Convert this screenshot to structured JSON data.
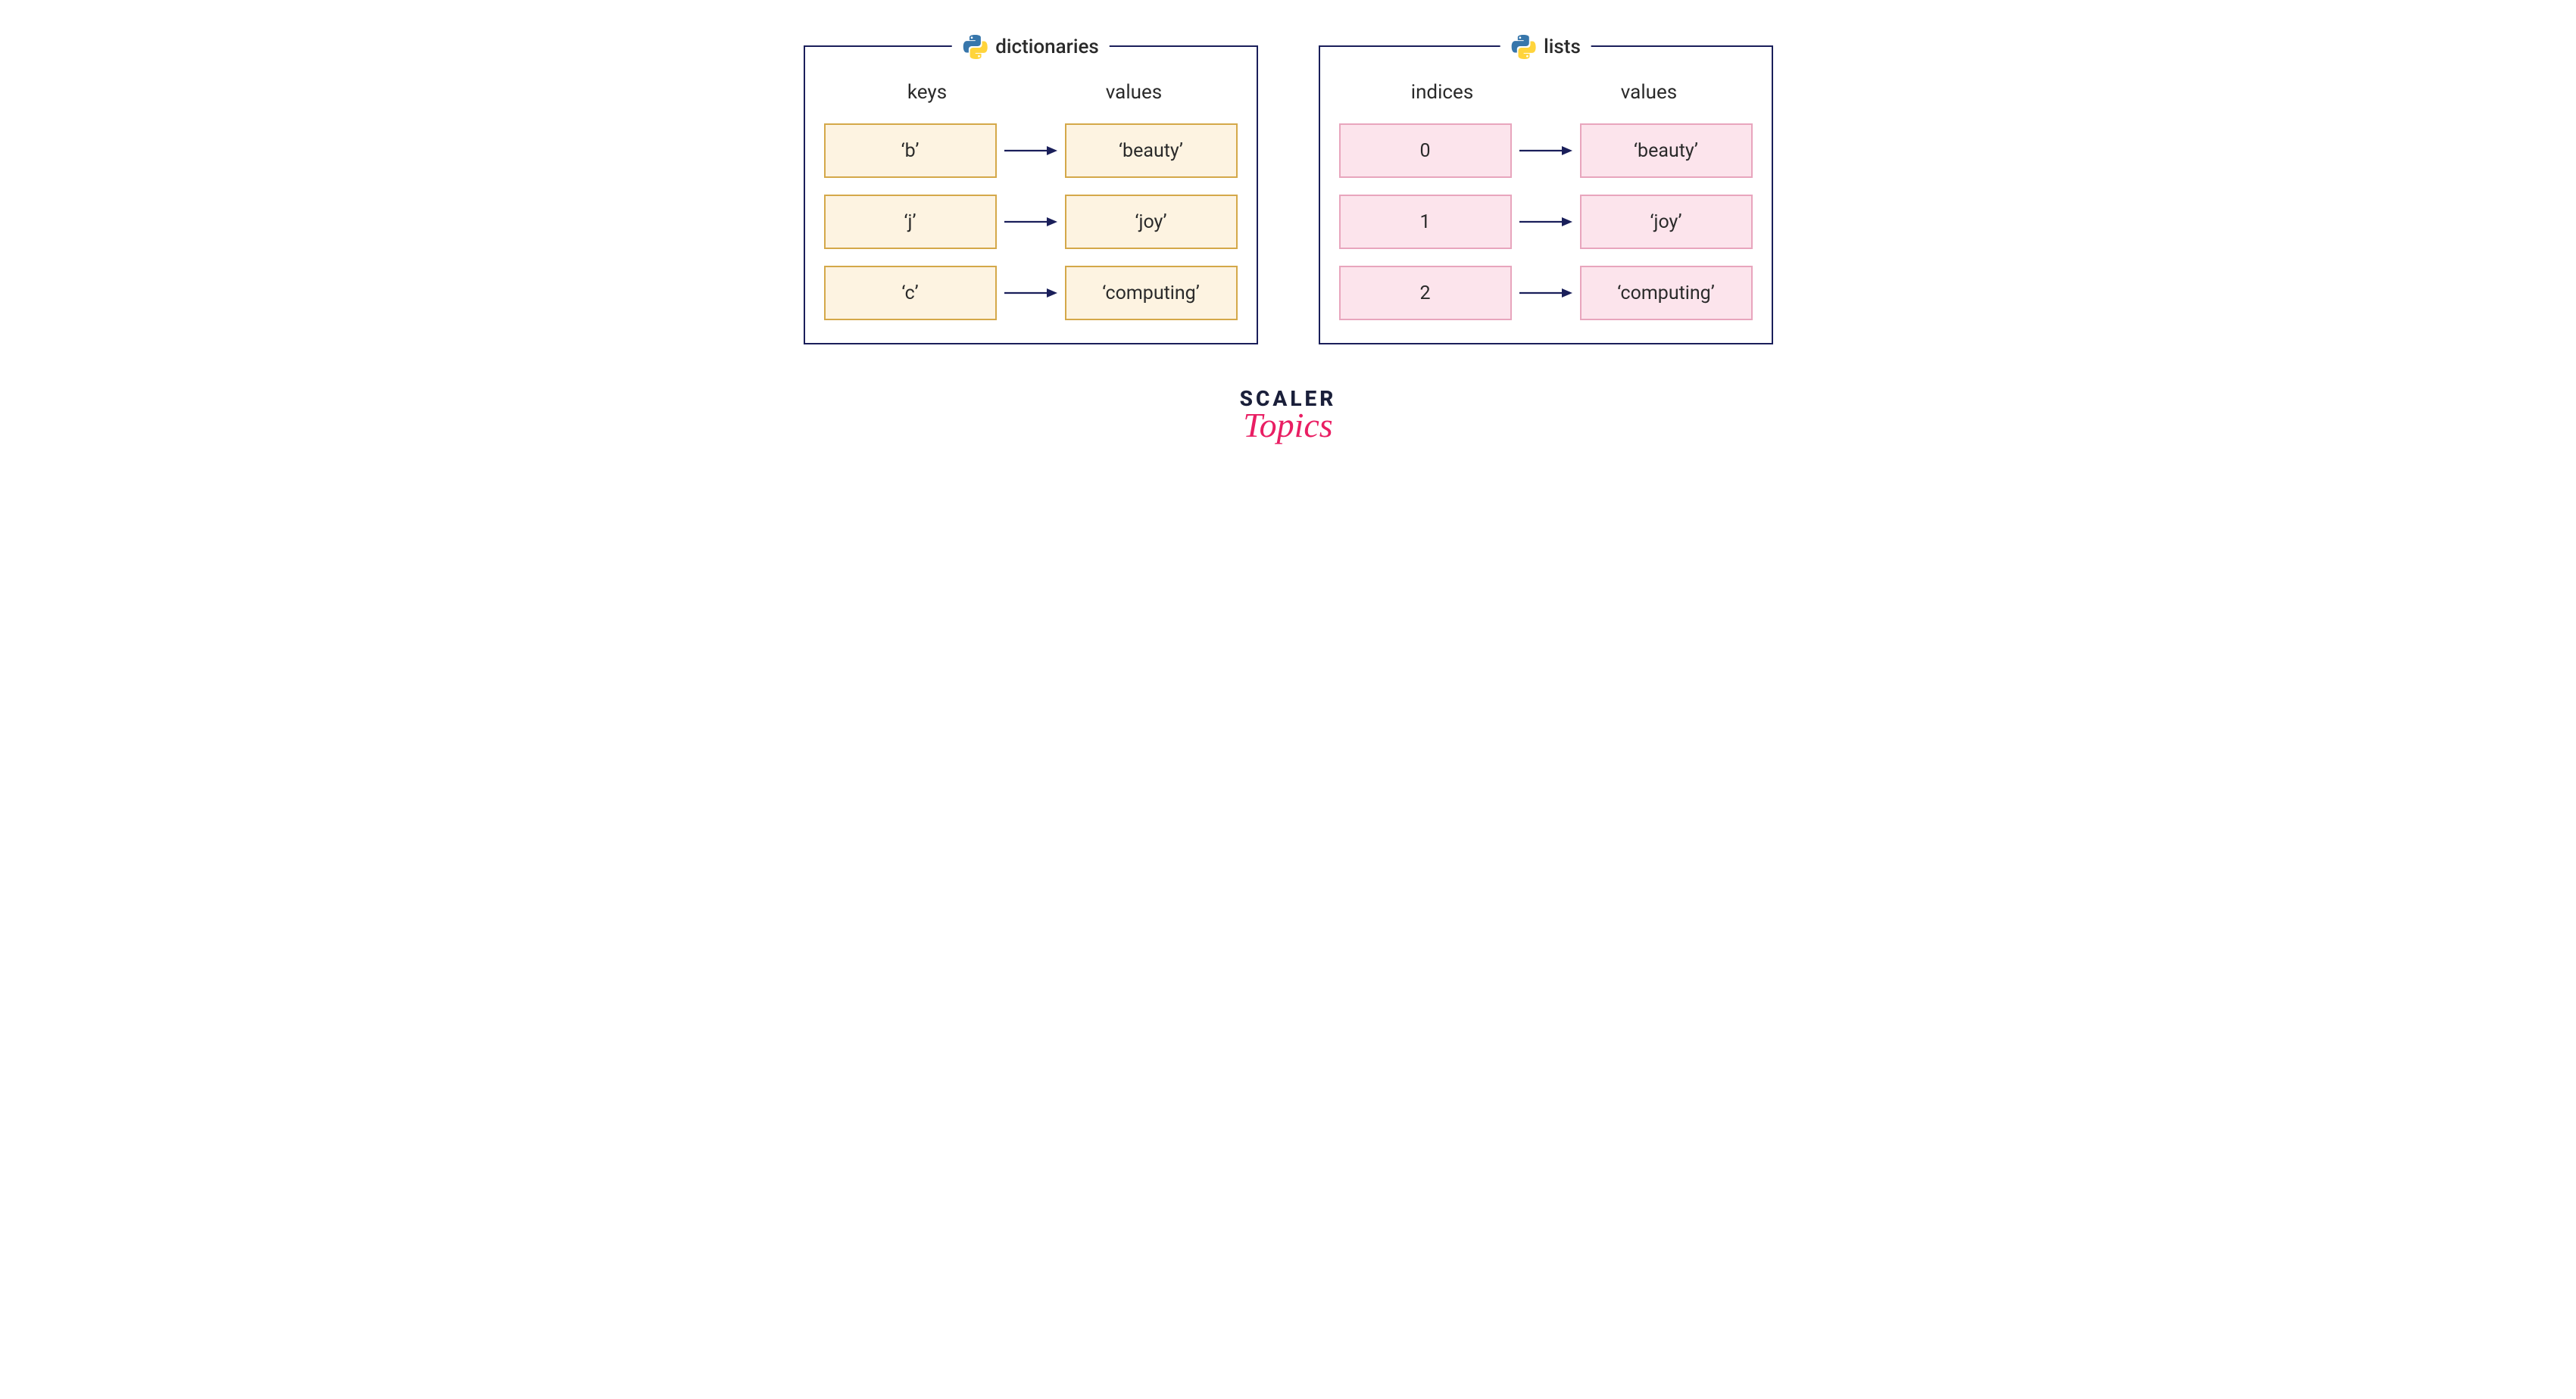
{
  "colors": {
    "border": "#1a1f5a",
    "text": "#2a2a2a",
    "arrow": "#1a1f5a",
    "dict_fill": "#fdf3e1",
    "dict_border": "#d4a849",
    "list_fill": "#fce4ec",
    "list_border": "#e8a5bd",
    "python_blue": "#3776ab",
    "python_yellow": "#ffd43b",
    "logo_dark": "#1a1f3a",
    "logo_pink": "#e91e63"
  },
  "panels": [
    {
      "id": "dict",
      "title": "dictionaries",
      "left_header": "keys",
      "right_header": "values",
      "cell_fill": "#fdf3e1",
      "cell_border": "#d4a849",
      "rows": [
        {
          "key": "‘b’",
          "value": "‘beauty’"
        },
        {
          "key": "‘j’",
          "value": "‘joy’"
        },
        {
          "key": "‘c’",
          "value": "‘computing’"
        }
      ]
    },
    {
      "id": "list",
      "title": "lists",
      "left_header": "indices",
      "right_header": "values",
      "cell_fill": "#fce4ec",
      "cell_border": "#e8a5bd",
      "rows": [
        {
          "key": "0",
          "value": "‘beauty’"
        },
        {
          "key": "1",
          "value": "‘joy’"
        },
        {
          "key": "2",
          "value": "‘computing’"
        }
      ]
    }
  ],
  "logo": {
    "top": "SCALER",
    "bottom": "Topics"
  }
}
